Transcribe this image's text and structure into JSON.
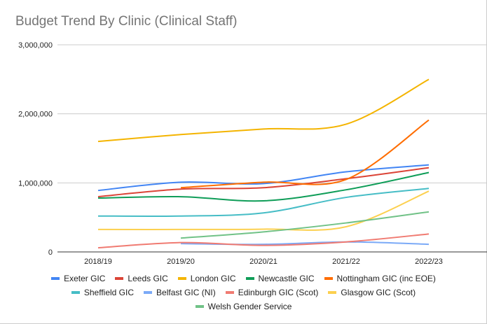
{
  "chart_data": {
    "type": "line",
    "title": "Budget Trend By Clinic (Clinical Staff)",
    "xlabel": "",
    "ylabel": "",
    "categories": [
      "2018/19",
      "2019/20",
      "2020/21",
      "2021/22",
      "2022/23"
    ],
    "ylim": [
      0,
      3000000
    ],
    "yticks": [
      0,
      1000000,
      2000000,
      3000000
    ],
    "ytick_labels": [
      "0",
      "1,000,000",
      "2,000,000",
      "3,000,000"
    ],
    "grid": true,
    "legend_position": "bottom",
    "smooth": true,
    "series": [
      {
        "name": "Exeter GIC",
        "color": "#4285f4",
        "values": [
          890000,
          1010000,
          990000,
          1160000,
          1260000
        ]
      },
      {
        "name": "Leeds GIC",
        "color": "#db4437",
        "values": [
          800000,
          910000,
          930000,
          1060000,
          1220000
        ]
      },
      {
        "name": "London GIC",
        "color": "#f4b400",
        "values": [
          1600000,
          1700000,
          1780000,
          1850000,
          2500000
        ]
      },
      {
        "name": "Newcastle GIC",
        "color": "#0f9d58",
        "values": [
          780000,
          800000,
          740000,
          900000,
          1150000
        ]
      },
      {
        "name": "Nottingham GIC (inc EOE)",
        "color": "#ff6d01",
        "values": [
          null,
          930000,
          1010000,
          1050000,
          1910000
        ]
      },
      {
        "name": "Sheffield GIC",
        "color": "#46bdc6",
        "values": [
          520000,
          520000,
          565000,
          790000,
          920000
        ]
      },
      {
        "name": "Belfast GIC (NI)",
        "color": "#7baaf7",
        "values": [
          null,
          120000,
          110000,
          145000,
          110000
        ]
      },
      {
        "name": "Edinburgh GIC (Scot)",
        "color": "#f07b72",
        "values": [
          60000,
          135000,
          95000,
          145000,
          260000
        ]
      },
      {
        "name": "Glasgow GIC (Scot)",
        "color": "#fcd04f",
        "values": [
          325000,
          325000,
          330000,
          365000,
          880000
        ]
      },
      {
        "name": "Welsh Gender Service",
        "color": "#71c287",
        "values": [
          null,
          200000,
          290000,
          420000,
          580000
        ]
      }
    ]
  }
}
